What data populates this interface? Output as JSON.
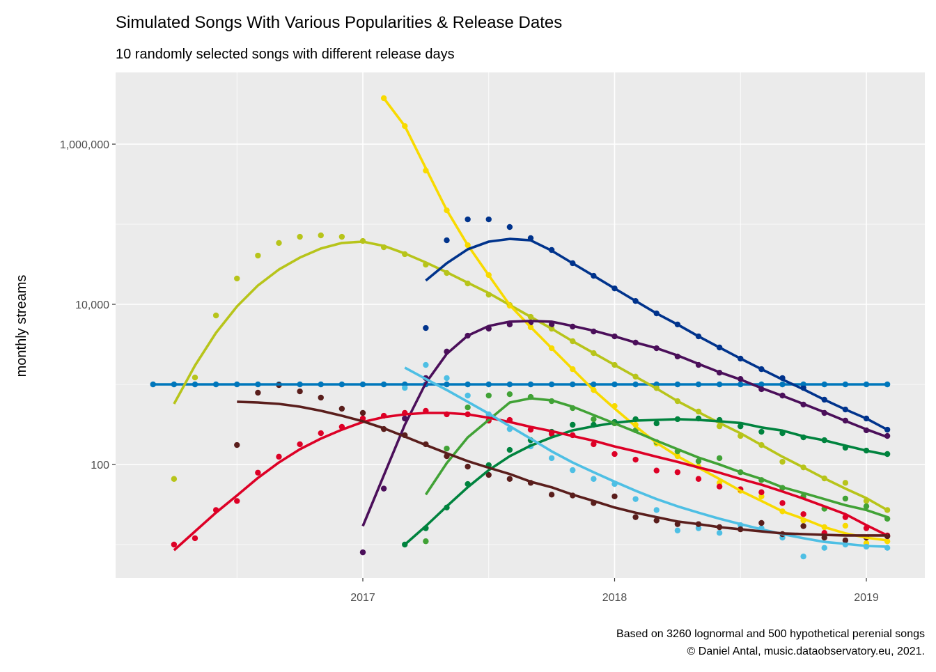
{
  "chart_data": {
    "type": "line",
    "title": "Simulated Songs With Various Popularities & Release Dates",
    "subtitle": "10 randomly selected songs with different release days",
    "caption": [
      "Based on 3260 lognormal and 500 hypothetical perenial songs",
      "© Daniel Antal, music.dataobservatory.eu, 2021."
    ],
    "xlabel": "",
    "ylabel": "monthly streams",
    "y_scale": "log10",
    "ylim": [
      3.8,
      7900000
    ],
    "xlim": [
      "2016-01",
      "2019-03"
    ],
    "x_ticks": [
      {
        "value": 2017,
        "label": "2017"
      },
      {
        "value": 2018,
        "label": "2018"
      },
      {
        "value": 2019,
        "label": "2019"
      }
    ],
    "y_ticks": [
      {
        "value": 100,
        "label": "100"
      },
      {
        "value": 10000,
        "label": "10,000"
      },
      {
        "value": 1000000,
        "label": "1,000,000"
      }
    ],
    "y_minor": [
      10,
      1000,
      100000
    ],
    "grid": true,
    "legend": "none",
    "panel_background": "#ebebeb",
    "series": [
      {
        "color": "#0077bb",
        "start": "2016-03",
        "points": [
          1000,
          1000,
          1000,
          1000,
          1000,
          1000,
          1000,
          1000,
          1000,
          1000,
          1000,
          1000,
          1000,
          1000,
          1000,
          1000,
          1000,
          1000,
          1000,
          1000,
          1000,
          1000,
          1000,
          1000,
          1000,
          1000,
          1000,
          1000,
          1000,
          1000,
          1000,
          1000,
          1000,
          1000,
          1000,
          1000
        ],
        "fit_start": "2016-03",
        "fit": [
          1000,
          1000,
          1000,
          1000,
          1000,
          1000,
          1000,
          1000,
          1000,
          1000,
          1000,
          1000,
          1000,
          1000,
          1000,
          1000,
          1000,
          1000,
          1000,
          1000,
          1000,
          1000,
          1000,
          1000,
          1000,
          1000,
          1000,
          1000,
          1000,
          1000,
          1000,
          1000,
          1000,
          1000,
          1000,
          1000
        ]
      },
      {
        "color": "#b7c41a",
        "start": "2016-04",
        "points": [
          66,
          1220,
          7260,
          21000,
          40600,
          58300,
          69700,
          72600,
          69700,
          61800,
          51600,
          42300,
          31300,
          24600,
          18200,
          13200,
          9800,
          6970,
          4960,
          3460,
          2460,
          1750,
          1250,
          900,
          618,
          458,
          300,
          227,
          175,
          108,
          92,
          67,
          59,
          35,
          27
        ],
        "fit_start": "2016-04",
        "fit": [
          571,
          1720,
          4400,
          9420,
          17200,
          27200,
          38300,
          49700,
          58300,
          60600,
          53700,
          43100,
          33300,
          25100,
          18600,
          13800,
          9800,
          6970,
          4960,
          3460,
          2460,
          1750,
          1250,
          887,
          618,
          450,
          330,
          245,
          175,
          125,
          92,
          67,
          50,
          38,
          27
        ]
      },
      {
        "color": "#f8da00",
        "start": "2017-02",
        "points": [
          3750000,
          1680000,
          468000,
          149000,
          54800,
          23200,
          9620,
          5170,
          2830,
          1550,
          851,
          537,
          313,
          182,
          127,
          94,
          59,
          47,
          40,
          26,
          20,
          16.5,
          17.2,
          10.4,
          11
        ],
        "fit_start": "2017-02",
        "fit": [
          3750000,
          1680000,
          500000,
          150000,
          55000,
          23000,
          9800,
          5200,
          2830,
          1550,
          850,
          500,
          300,
          186,
          127,
          91,
          66,
          47,
          35,
          26,
          21,
          16.5,
          13.8,
          12.2,
          11.3
        ]
      },
      {
        "color": "#00338c",
        "start": "2017-04",
        "points": [
          5060,
          63000,
          115000,
          115000,
          92300,
          67000,
          47700,
          32600,
          22700,
          15800,
          11000,
          7700,
          5600,
          3980,
          2890,
          2100,
          1550,
          1200,
          905,
          644,
          486,
          375,
          272
        ],
        "fit_start": "2017-04",
        "fit": [
          19800,
          32600,
          48600,
          60600,
          65600,
          63000,
          46800,
          32600,
          22700,
          15800,
          11000,
          7700,
          5600,
          3980,
          2890,
          2100,
          1550,
          1150,
          870,
          644,
          486,
          375,
          272
        ]
      },
      {
        "color": "#4b0f5a",
        "start": "2017-01",
        "points": [
          8,
          50,
          375,
          1200,
          2570,
          4060,
          4970,
          5600,
          5940,
          5600,
          5270,
          4580,
          3980,
          3330,
          2830,
          2230,
          1750,
          1400,
          1170,
          870,
          726,
          560,
          440,
          353,
          267,
          227
        ],
        "fit_start": "2017-01",
        "fit": [
          17,
          73,
          313,
          1040,
          2410,
          4060,
          5370,
          6070,
          6200,
          6070,
          5370,
          4680,
          3980,
          3330,
          2830,
          2300,
          1800,
          1420,
          1150,
          900,
          720,
          570,
          450,
          350,
          275,
          220
        ]
      },
      {
        "color": "#00833e",
        "start": "2017-03",
        "points": [
          10,
          16,
          29,
          57,
          98,
          152,
          201,
          256,
          313,
          313,
          339,
          368,
          326,
          368,
          375,
          360,
          300,
          256,
          246,
          218,
          201,
          162,
          149,
          135
        ],
        "fit_start": "2017-03",
        "fit": [
          10,
          17,
          30,
          52,
          85,
          127,
          172,
          218,
          267,
          300,
          332,
          353,
          360,
          368,
          360,
          346,
          330,
          290,
          265,
          225,
          200,
          172,
          149,
          132
        ]
      },
      {
        "color": "#41a236",
        "start": "2017-04",
        "points": [
          11,
          158,
          516,
          726,
          755,
          697,
          618,
          506,
          367,
          326,
          267,
          190,
          146,
          110,
          120,
          80,
          64,
          51,
          40,
          28,
          37.5,
          30,
          21
        ],
        "fit_start": "2017-04",
        "fit": [
          42,
          104,
          218,
          360,
          594,
          670,
          632,
          527,
          414,
          326,
          256,
          198,
          155,
          122,
          100,
          80,
          66,
          52,
          44,
          37,
          31,
          27,
          22
        ]
      },
      {
        "color": "#dd0026",
        "start": "2016-04",
        "points": [
          10,
          12,
          27,
          35,
          79,
          125,
          179,
          246,
          295,
          375,
          406,
          440,
          468,
          423,
          423,
          353,
          360,
          272,
          241,
          232,
          179,
          135,
          115,
          84,
          80,
          66,
          53,
          49,
          45,
          33,
          24,
          14,
          22,
          16,
          13
        ],
        "fit_start": "2016-04",
        "fit": [
          8.5,
          14.6,
          25,
          41,
          68,
          106,
          155,
          210,
          272,
          339,
          390,
          423,
          440,
          440,
          423,
          383,
          339,
          295,
          261,
          227,
          198,
          168,
          146,
          125,
          108,
          92,
          79,
          66,
          56,
          46,
          37.5,
          30,
          24,
          17.5,
          13
        ]
      },
      {
        "color": "#4ebfe4",
        "start": "2017-03",
        "points": [
          905,
          1750,
          1200,
          726,
          423,
          277,
          168,
          120,
          85,
          66,
          57,
          37,
          27,
          15,
          16,
          14,
          17.5,
          16,
          12.2,
          7.1,
          9.1,
          10,
          9.4,
          9.1
        ],
        "fit_start": "2017-03",
        "fit": [
          1620,
          1170,
          851,
          607,
          431,
          300,
          210,
          146,
          106,
          80,
          61,
          47,
          37,
          30,
          25,
          21,
          18,
          15.5,
          13.5,
          12,
          10.8,
          10.2,
          9.6,
          9.4
        ]
      },
      {
        "color": "#5a1e1c",
        "start": "2016-07",
        "points": [
          175,
          787,
          980,
          818,
          684,
          497,
          440,
          277,
          232,
          179,
          127,
          94,
          74,
          66,
          59,
          42,
          41,
          33,
          40,
          22,
          20,
          18,
          18,
          16.5,
          15.5,
          18.6,
          13.5,
          17,
          12.2,
          11.3,
          12.2,
          12.7
        ],
        "fit_start": "2016-07",
        "fit": [
          607,
          594,
          571,
          527,
          468,
          406,
          346,
          283,
          223,
          175,
          138,
          110,
          91,
          76,
          61,
          52,
          42,
          35,
          29,
          25,
          22,
          19.4,
          18,
          16.5,
          15.5,
          14.6,
          13.8,
          13.5,
          13.2,
          13,
          13,
          13
        ]
      }
    ]
  }
}
